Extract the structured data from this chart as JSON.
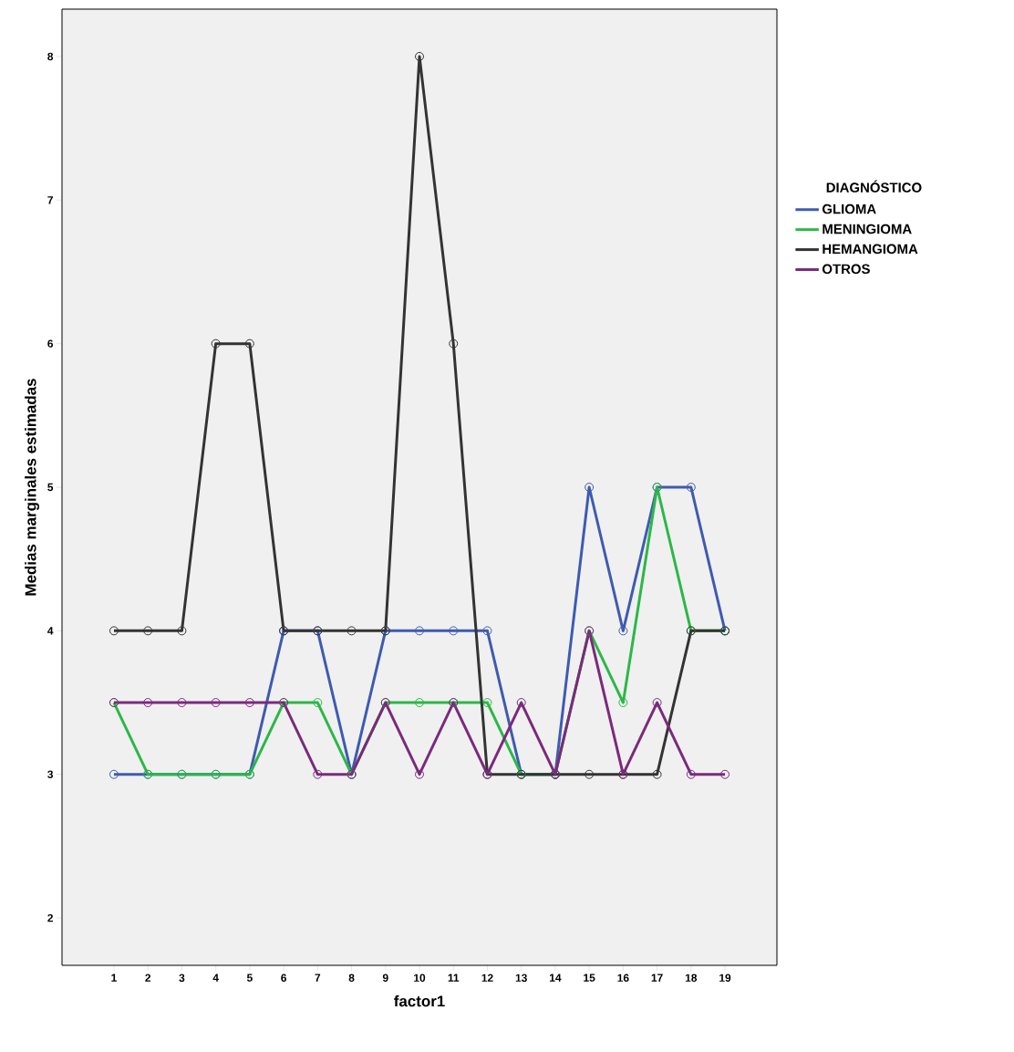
{
  "chart_data": {
    "type": "line",
    "xlabel": "factor1",
    "ylabel": "Medias marginales estimadas",
    "legend_title": "DIAGNÓSTICO",
    "legend": "right",
    "marker": "circle",
    "line_style": "solid",
    "grid": false,
    "categories": [
      "1",
      "2",
      "3",
      "4",
      "5",
      "6",
      "7",
      "8",
      "9",
      "10",
      "11",
      "12",
      "13",
      "14",
      "15",
      "16",
      "17",
      "18",
      "19"
    ],
    "ylim": [
      1.67,
      8.33
    ],
    "yticks": [
      2,
      3,
      4,
      5,
      6,
      7,
      8
    ],
    "series": [
      {
        "name": "GLIOMA",
        "color": "#3e5bb0",
        "values": [
          3,
          3,
          3,
          3,
          3,
          4,
          4,
          3,
          4,
          4,
          4,
          4,
          3,
          3,
          5,
          4,
          5,
          5,
          4
        ]
      },
      {
        "name": "MENINGIOMA",
        "color": "#2bb847",
        "values": [
          3.5,
          3,
          3,
          3,
          3,
          3.5,
          3.5,
          3,
          3.5,
          3.5,
          3.5,
          3.5,
          3,
          3,
          4,
          3.5,
          5,
          4,
          4
        ]
      },
      {
        "name": "HEMANGIOMA",
        "color": "#333333",
        "values": [
          4,
          4,
          4,
          6,
          6,
          4,
          4,
          4,
          4,
          8,
          6,
          3,
          3,
          3,
          3,
          3,
          3,
          4,
          4
        ]
      },
      {
        "name": "OTROS",
        "color": "#7b2a7c",
        "values": [
          3.5,
          3.5,
          3.5,
          3.5,
          3.5,
          3.5,
          3,
          3,
          3.5,
          3,
          3.5,
          3,
          3.5,
          3,
          4,
          3,
          3.5,
          3,
          3
        ]
      }
    ]
  }
}
